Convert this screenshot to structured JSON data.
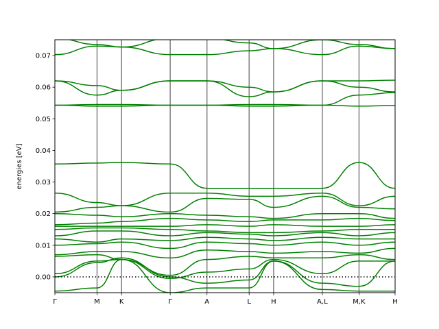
{
  "colors": {
    "band": "#008000",
    "kpath_line": "#808080",
    "fermi_line": "#000000",
    "frame": "#000000"
  },
  "chart_data": {
    "type": "line",
    "ylabel": "energies [eV]",
    "xlabel": "",
    "ylim": [
      -0.005,
      0.075
    ],
    "grid": false,
    "legend": "none",
    "yticks": [
      0.0,
      0.01,
      0.02,
      0.03,
      0.04,
      0.05,
      0.06,
      0.07
    ],
    "ytick_labels": [
      "0.00",
      "0.01",
      "0.02",
      "0.03",
      "0.04",
      "0.05",
      "0.06",
      "0.07"
    ],
    "xticks": [
      "Γ",
      "M",
      "K",
      "Γ",
      "A",
      "L",
      "H",
      "A,L",
      "M,K",
      "H"
    ],
    "kpath_positions": [
      0.0,
      0.124,
      0.196,
      0.339,
      0.447,
      0.571,
      0.643,
      0.786,
      0.894,
      1.0
    ],
    "fermi_level": 0.0,
    "bands_description": "phonon-like band structure, energy values sampled at each high-symmetry point",
    "series": [
      {
        "values": [
          0.0755,
          0.0735,
          0.0727,
          0.0755,
          0.0755,
          0.074,
          0.0722,
          0.075,
          0.0735,
          0.0722
        ]
      },
      {
        "values": [
          0.0703,
          0.073,
          0.0727,
          0.0703,
          0.0703,
          0.0715,
          0.0722,
          0.0703,
          0.073,
          0.0722
        ]
      },
      {
        "values": [
          0.062,
          0.0605,
          0.059,
          0.062,
          0.062,
          0.06,
          0.0585,
          0.062,
          0.062,
          0.0622
        ]
      },
      {
        "values": [
          0.062,
          0.0575,
          0.059,
          0.062,
          0.062,
          0.057,
          0.0585,
          0.062,
          0.06,
          0.0585
        ]
      },
      {
        "values": [
          0.0543,
          0.0545,
          0.0545,
          0.0543,
          0.0543,
          0.0545,
          0.0545,
          0.0543,
          0.0575,
          0.0583
        ]
      },
      {
        "values": [
          0.0543,
          0.054,
          0.054,
          0.0543,
          0.0543,
          0.054,
          0.054,
          0.0543,
          0.054,
          0.0542
        ]
      },
      {
        "values": [
          0.0357,
          0.036,
          0.0362,
          0.0357,
          0.028,
          0.028,
          0.028,
          0.028,
          0.0362,
          0.028
        ]
      },
      {
        "values": [
          0.0265,
          0.0235,
          0.0225,
          0.0265,
          0.0265,
          0.0255,
          0.0255,
          0.0265,
          0.0225,
          0.0255
        ]
      },
      {
        "values": [
          0.0205,
          0.022,
          0.0225,
          0.0205,
          0.0248,
          0.0245,
          0.022,
          0.0255,
          0.022,
          0.0215
        ]
      },
      {
        "values": [
          0.02,
          0.0195,
          0.019,
          0.02,
          0.0195,
          0.019,
          0.0185,
          0.02,
          0.02,
          0.0185
        ]
      },
      {
        "values": [
          0.0165,
          0.017,
          0.0175,
          0.0185,
          0.018,
          0.0175,
          0.018,
          0.018,
          0.0185,
          0.0178
        ]
      },
      {
        "values": [
          0.016,
          0.016,
          0.016,
          0.016,
          0.0165,
          0.016,
          0.0165,
          0.016,
          0.016,
          0.0165
        ]
      },
      {
        "values": [
          0.015,
          0.0155,
          0.0155,
          0.015,
          0.0145,
          0.014,
          0.014,
          0.0145,
          0.015,
          0.015
        ]
      },
      {
        "values": [
          0.013,
          0.0145,
          0.0145,
          0.013,
          0.014,
          0.0135,
          0.013,
          0.014,
          0.013,
          0.014
        ]
      },
      {
        "values": [
          0.012,
          0.011,
          0.012,
          0.0115,
          0.0125,
          0.012,
          0.0115,
          0.0125,
          0.012,
          0.012
        ]
      },
      {
        "values": [
          0.01,
          0.0105,
          0.011,
          0.009,
          0.011,
          0.0105,
          0.01,
          0.011,
          0.01,
          0.011
        ]
      },
      {
        "values": [
          0.007,
          0.008,
          0.008,
          0.006,
          0.0085,
          0.008,
          0.0075,
          0.008,
          0.0075,
          0.009
        ]
      },
      {
        "values": [
          0.0065,
          0.007,
          0.0055,
          0.0005,
          0.0055,
          0.0065,
          0.006,
          0.006,
          0.007,
          0.0055
        ]
      },
      {
        "values": [
          0.001,
          0.005,
          0.0055,
          -0.0005,
          0.0015,
          0.0025,
          0.0055,
          0.001,
          0.005,
          0.005
        ]
      },
      {
        "values": [
          0.0,
          0.0045,
          0.006,
          0.0,
          -0.002,
          -0.001,
          0.005,
          -0.002,
          -0.003,
          0.005
        ]
      },
      {
        "values": [
          -0.0045,
          -0.0035,
          0.0055,
          -0.005,
          -0.0035,
          -0.0035,
          0.005,
          -0.004,
          -0.0045,
          -0.0045
        ]
      }
    ]
  }
}
